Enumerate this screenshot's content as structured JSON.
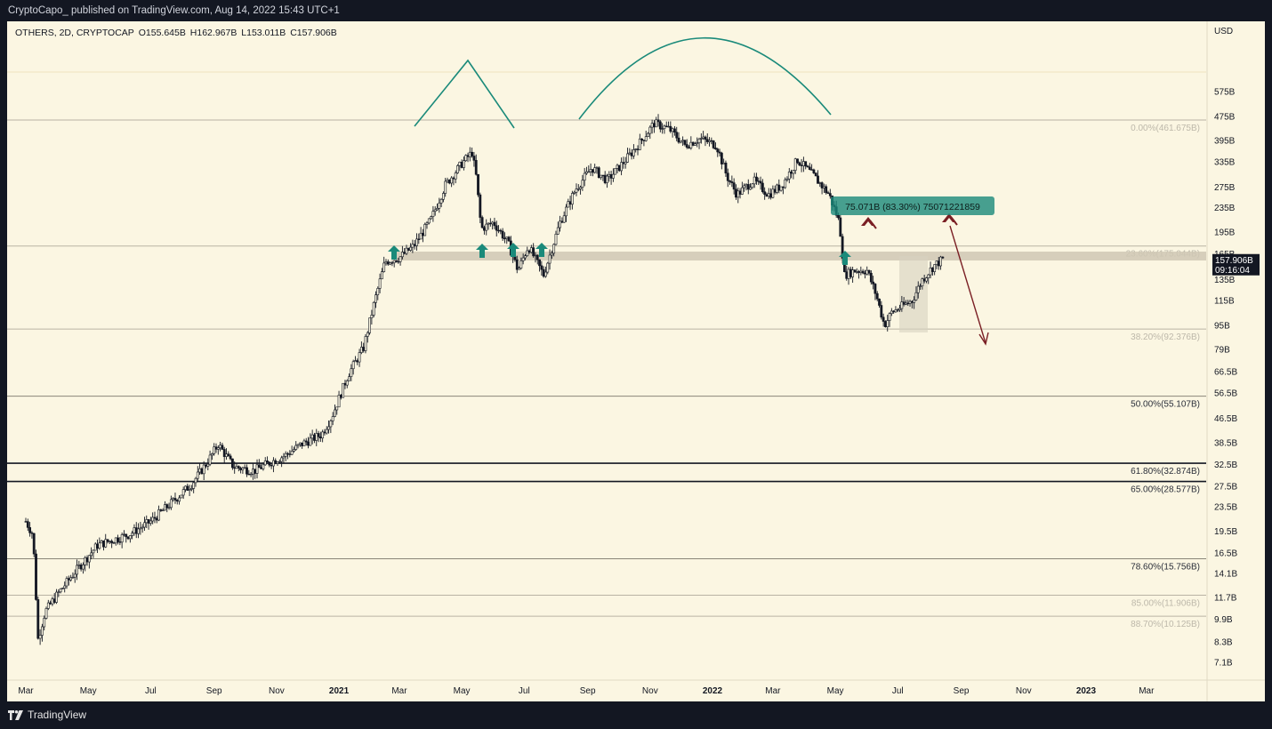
{
  "header": {
    "published_by": "CryptoCapo_ published on TradingView.com, Aug 14, 2022 15:43 UTC+1"
  },
  "legend": {
    "symbol": "OTHERS, 2D, CRYPTOCAP",
    "open": "O155.645B",
    "high": "H162.967B",
    "low": "L153.011B",
    "close": "C157.906B"
  },
  "footer": {
    "brand": "TradingView"
  },
  "colors": {
    "background": "#fbf6e2",
    "frame": "#131722",
    "teal": "#1a8a7a",
    "maroon": "#7a1f24",
    "candle": "#131722"
  },
  "chart_data": {
    "type": "candlestick",
    "scale": "log",
    "currency_label": "USD",
    "y_ticks": [
      "575B",
      "475B",
      "395B",
      "335B",
      "275B",
      "235B",
      "195B",
      "165B",
      "135B",
      "115B",
      "95B",
      "79B",
      "66.5B",
      "56.5B",
      "46.5B",
      "38.5B",
      "32.5B",
      "27.5B",
      "23.5B",
      "19.5B",
      "16.5B",
      "14.1B",
      "11.7B",
      "9.9B",
      "8.3B",
      "7.1B"
    ],
    "x_ticks": [
      "Mar",
      "May",
      "Jul",
      "Sep",
      "Nov",
      "2021",
      "Mar",
      "May",
      "Jul",
      "Sep",
      "Nov",
      "2022",
      "Mar",
      "May",
      "Jul",
      "Sep",
      "Nov",
      "2023",
      "Mar"
    ],
    "x_ticks_bold": [
      "2021",
      "2022",
      "2023"
    ],
    "price_tag": {
      "value": "157.906B",
      "countdown": "09:16:04"
    },
    "measure_label": "75.071B (83.30%) 75071221859",
    "fib_levels": [
      {
        "label": "0.00%(461.675B)",
        "value": 461.675,
        "faded": true
      },
      {
        "label": "23.60%(175.044B)",
        "value": 175.044,
        "faded": true
      },
      {
        "label": "38.20%(92.376B)",
        "value": 92.376,
        "faded": true
      },
      {
        "label": "50.00%(55.107B)",
        "value": 55.107,
        "faded": false
      },
      {
        "label": "61.80%(32.874B)",
        "value": 32.874,
        "faded": false,
        "bold": true
      },
      {
        "label": "65.00%(28.577B)",
        "value": 28.577,
        "faded": false,
        "bold": true
      },
      {
        "label": "78.60%(15.756B)",
        "value": 15.756,
        "faded": false
      },
      {
        "label": "85.00%(11.906B)",
        "value": 11.906,
        "faded": true
      },
      {
        "label": "88.70%(10.125B)",
        "value": 10.125,
        "faded": true
      }
    ],
    "path": [
      [
        "2020-03-01",
        21
      ],
      [
        "2020-03-08",
        19
      ],
      [
        "2020-03-13",
        8.5
      ],
      [
        "2020-03-20",
        10.5
      ],
      [
        "2020-04-01",
        12
      ],
      [
        "2020-04-20",
        14.5
      ],
      [
        "2020-05-10",
        17.5
      ],
      [
        "2020-06-10",
        19
      ],
      [
        "2020-07-01",
        21
      ],
      [
        "2020-07-20",
        24
      ],
      [
        "2020-08-10",
        28
      ],
      [
        "2020-08-25",
        33
      ],
      [
        "2020-09-05",
        38
      ],
      [
        "2020-09-20",
        32
      ],
      [
        "2020-10-10",
        31
      ],
      [
        "2020-10-25",
        33
      ],
      [
        "2020-11-10",
        35
      ],
      [
        "2020-11-25",
        38
      ],
      [
        "2020-12-15",
        41
      ],
      [
        "2020-12-25",
        47
      ],
      [
        "2021-01-10",
        65
      ],
      [
        "2021-01-25",
        80
      ],
      [
        "2021-02-05",
        115
      ],
      [
        "2021-02-15",
        155
      ],
      [
        "2021-03-01",
        160
      ],
      [
        "2021-03-15",
        175
      ],
      [
        "2021-04-01",
        215
      ],
      [
        "2021-04-15",
        280
      ],
      [
        "2021-05-01",
        330
      ],
      [
        "2021-05-11",
        360
      ],
      [
        "2021-05-15",
        300
      ],
      [
        "2021-05-20",
        200
      ],
      [
        "2021-06-01",
        210
      ],
      [
        "2021-06-15",
        180
      ],
      [
        "2021-06-25",
        145
      ],
      [
        "2021-07-05",
        175
      ],
      [
        "2021-07-20",
        140
      ],
      [
        "2021-08-05",
        210
      ],
      [
        "2021-08-20",
        270
      ],
      [
        "2021-09-05",
        320
      ],
      [
        "2021-09-20",
        290
      ],
      [
        "2021-10-05",
        330
      ],
      [
        "2021-10-20",
        380
      ],
      [
        "2021-11-05",
        450
      ],
      [
        "2021-11-20",
        430
      ],
      [
        "2021-12-05",
        380
      ],
      [
        "2021-12-20",
        400
      ],
      [
        "2022-01-05",
        380
      ],
      [
        "2022-01-15",
        300
      ],
      [
        "2022-01-25",
        260
      ],
      [
        "2022-02-10",
        290
      ],
      [
        "2022-02-25",
        260
      ],
      [
        "2022-03-10",
        280
      ],
      [
        "2022-03-25",
        340
      ],
      [
        "2022-04-10",
        300
      ],
      [
        "2022-04-25",
        260
      ],
      [
        "2022-05-05",
        210
      ],
      [
        "2022-05-10",
        140
      ],
      [
        "2022-05-20",
        145
      ],
      [
        "2022-06-01",
        145
      ],
      [
        "2022-06-10",
        120
      ],
      [
        "2022-06-18",
        95
      ],
      [
        "2022-06-25",
        105
      ],
      [
        "2022-07-05",
        110
      ],
      [
        "2022-07-15",
        115
      ],
      [
        "2022-07-25",
        135
      ],
      [
        "2022-08-05",
        150
      ],
      [
        "2022-08-14",
        158
      ]
    ]
  }
}
